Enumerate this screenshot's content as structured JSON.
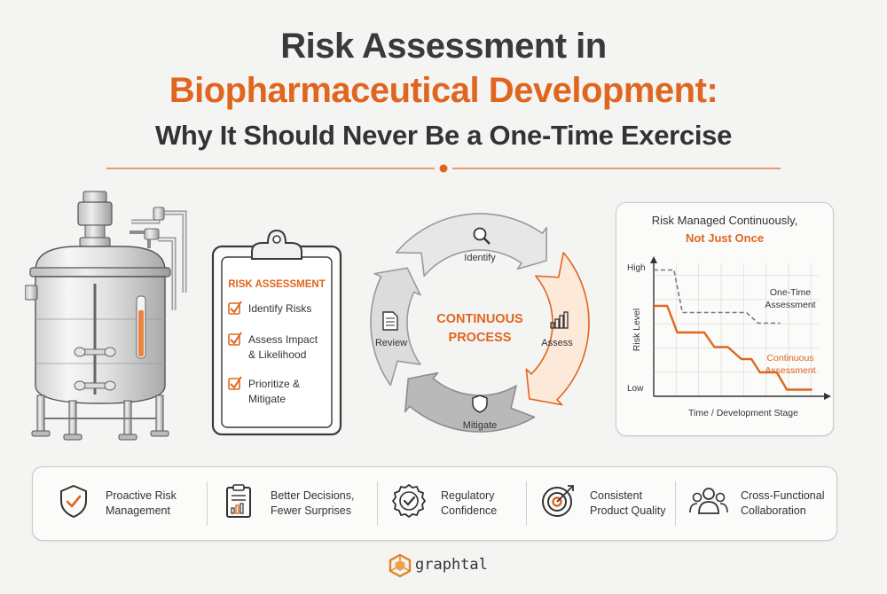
{
  "title": {
    "line1": "Risk Assessment in",
    "line2": "Biopharmaceutical Development:",
    "line3": "Why It Should Never Be a One-Time Exercise"
  },
  "colors": {
    "accent": "#e0661f",
    "text": "#333333",
    "muted": "#8a8a8a"
  },
  "clipboard": {
    "heading": "RISK ASSESSMENT",
    "items": [
      {
        "lines": [
          "Identify Risks"
        ]
      },
      {
        "lines": [
          "Assess Impact",
          "& Likelihood"
        ]
      },
      {
        "lines": [
          "Prioritize &",
          "Mitigate"
        ]
      }
    ]
  },
  "cycle": {
    "center_line1": "CONTINUOUS",
    "center_line2": "PROCESS",
    "steps": [
      {
        "label": "Identify",
        "icon": "magnifier-icon"
      },
      {
        "label": "Assess",
        "icon": "bar-chart-icon"
      },
      {
        "label": "Mitigate",
        "icon": "shield-icon"
      },
      {
        "label": "Review",
        "icon": "document-icon"
      }
    ]
  },
  "chart_data": {
    "type": "line",
    "title": "Risk Managed Continuously,",
    "subtitle": "Not Just Once",
    "xlabel": "Time / Development Stage",
    "ylabel": "Risk Level",
    "ytick_labels": [
      "Low",
      "High"
    ],
    "grid": true,
    "series": [
      {
        "name": "One-Time Assessment",
        "style": "dashed",
        "color": "#7a7a7a",
        "x": [
          0,
          0.12,
          0.17,
          0.55,
          0.62,
          0.75
        ],
        "y": [
          0.95,
          0.95,
          0.63,
          0.63,
          0.55,
          0.55
        ]
      },
      {
        "name": "Continuous Assessment",
        "style": "solid",
        "color": "#e0661f",
        "x": [
          0,
          0.08,
          0.14,
          0.3,
          0.36,
          0.44,
          0.52,
          0.58,
          0.63,
          0.73,
          0.79,
          0.94
        ],
        "y": [
          0.68,
          0.68,
          0.48,
          0.48,
          0.37,
          0.37,
          0.28,
          0.28,
          0.18,
          0.18,
          0.05,
          0.05
        ]
      }
    ]
  },
  "benefits": [
    {
      "icon": "shield-check-icon",
      "lines": [
        "Proactive Risk",
        "Management"
      ]
    },
    {
      "icon": "report-clipboard-icon",
      "lines": [
        "Better Decisions,",
        "Fewer Surprises"
      ]
    },
    {
      "icon": "award-badge-icon",
      "lines": [
        "Regulatory",
        "Confidence"
      ]
    },
    {
      "icon": "target-icon",
      "lines": [
        "Consistent",
        "Product Quality"
      ]
    },
    {
      "icon": "team-icon",
      "lines": [
        "Cross-Functional",
        "Collaboration"
      ]
    }
  ],
  "brand": {
    "name": "graphtal"
  }
}
